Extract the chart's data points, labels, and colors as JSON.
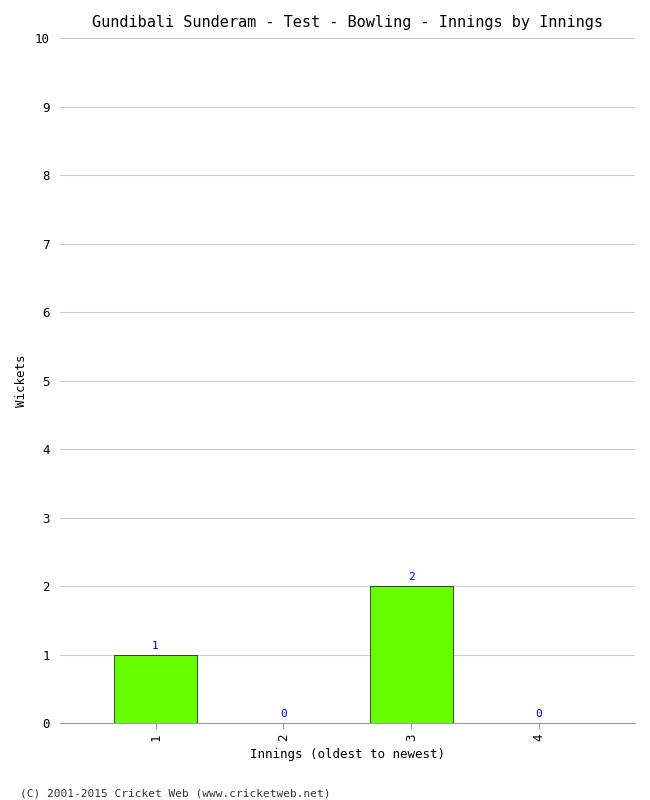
{
  "title": "Gundibali Sunderam - Test - Bowling - Innings by Innings",
  "xlabel": "Innings (oldest to newest)",
  "ylabel": "Wickets",
  "categories": [
    "1",
    "2",
    "3",
    "4"
  ],
  "values": [
    1,
    0,
    2,
    0
  ],
  "bar_color": "#66ff00",
  "bar_edgecolor": "#000000",
  "bar_linewidth": 0.5,
  "ylim": [
    0,
    10
  ],
  "yticks": [
    0,
    1,
    2,
    3,
    4,
    5,
    6,
    7,
    8,
    9,
    10
  ],
  "label_color": "#0000cc",
  "label_fontsize": 8,
  "background_color": "#ffffff",
  "plot_bg_color": "#ffffff",
  "grid_color": "#cccccc",
  "title_fontsize": 11,
  "axis_fontsize": 9,
  "footer": "(C) 2001-2015 Cricket Web (www.cricketweb.net)",
  "footer_fontsize": 8
}
